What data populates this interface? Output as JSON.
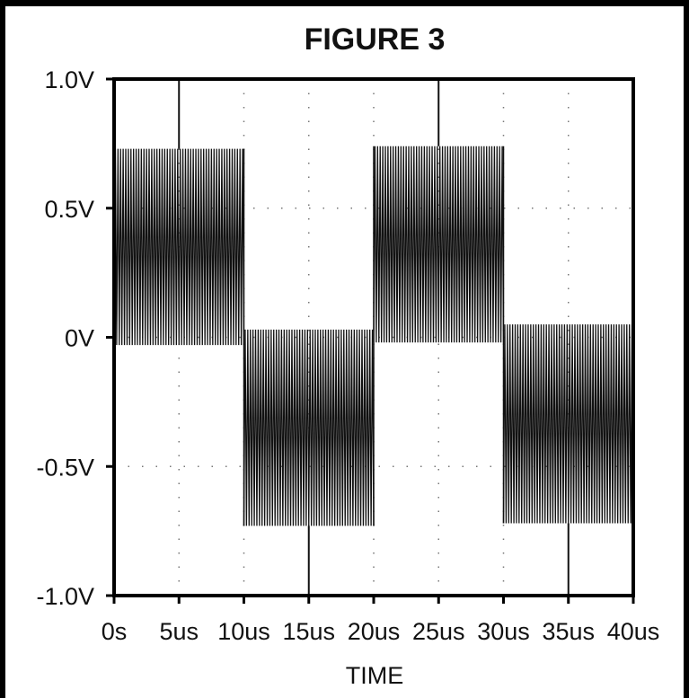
{
  "chart_data": {
    "type": "line",
    "title": "FIGURE 3",
    "xlabel": "TIME",
    "ylabel": "",
    "xlim": [
      0,
      40
    ],
    "ylim": [
      -1.0,
      1.0
    ],
    "x_ticks": [
      0,
      5,
      10,
      15,
      20,
      25,
      30,
      35,
      40
    ],
    "x_tick_labels": [
      "0s",
      "5us",
      "10us",
      "15us",
      "20us",
      "25us",
      "30us",
      "35us",
      "40us"
    ],
    "y_ticks": [
      1.0,
      0.5,
      0,
      -0.5,
      -1.0
    ],
    "y_tick_labels": [
      "1.0V",
      "0.5V",
      "0V",
      "-0.5V",
      "-1.0V"
    ],
    "grid": "dotted",
    "series": [
      {
        "description": "square-modulated high-frequency carrier",
        "segments": [
          {
            "x_start": 0,
            "x_end": 10,
            "y_high": 0.73,
            "y_low": -0.03
          },
          {
            "x_start": 10,
            "x_end": 20,
            "y_high": 0.03,
            "y_low": -0.73
          },
          {
            "x_start": 20,
            "x_end": 30,
            "y_high": 0.74,
            "y_low": -0.02
          },
          {
            "x_start": 30,
            "x_end": 40,
            "y_high": 0.05,
            "y_low": -0.72
          }
        ],
        "spikes": [
          {
            "x": 5,
            "y": 1.0
          },
          {
            "x": 15,
            "y": -1.0
          },
          {
            "x": 25,
            "y": 1.0
          },
          {
            "x": 35,
            "y": -1.0
          }
        ],
        "carrier_period_us": 0.2,
        "color": "#111111"
      }
    ]
  }
}
